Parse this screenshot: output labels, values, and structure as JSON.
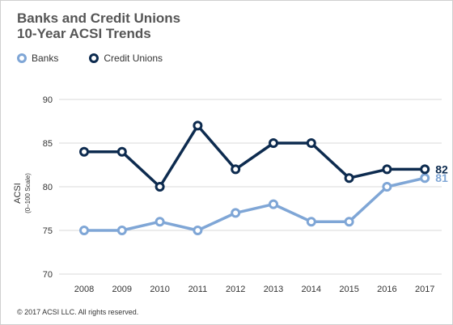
{
  "title_line1": "Banks and Credit Unions",
  "title_line2": "10-Year ACSI Trends",
  "footer": "© 2017 ACSI LLC. All rights reserved.",
  "colors": {
    "banks": "#7fa6d6",
    "credit_unions": "#0d2b4f",
    "grid": "#d9d9d9"
  },
  "chart_data": {
    "type": "line",
    "title": "Banks and Credit Unions 10-Year ACSI Trends",
    "ylabel": "ACSI",
    "ylabel_sub": "(0–100 Scale)",
    "xlabel": "",
    "ylim": [
      70,
      90
    ],
    "yticks": [
      70,
      75,
      80,
      85,
      90
    ],
    "grid": true,
    "legend_position": "top-left",
    "categories": [
      "2008",
      "2009",
      "2010",
      "2011",
      "2012",
      "2013",
      "2014",
      "2015",
      "2016",
      "2017"
    ],
    "series": [
      {
        "name": "Banks",
        "values": [
          75,
          75,
          76,
          75,
          77,
          78,
          76,
          76,
          80,
          81
        ],
        "end_label": "81"
      },
      {
        "name": "Credit Unions",
        "values": [
          84,
          84,
          80,
          87,
          82,
          85,
          85,
          81,
          82,
          82
        ],
        "end_label": "82"
      }
    ]
  }
}
